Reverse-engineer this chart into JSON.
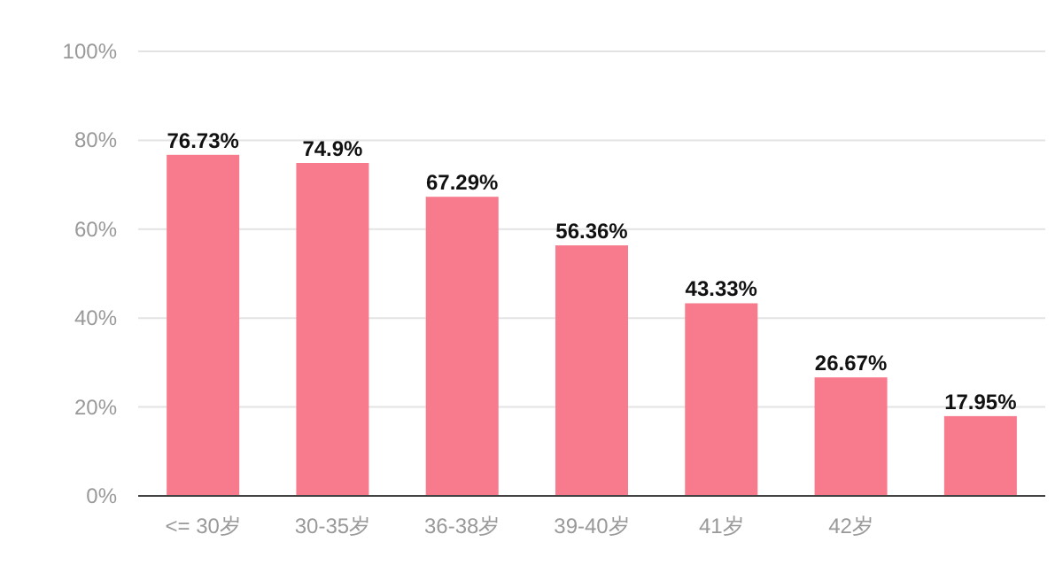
{
  "chart_data": {
    "type": "bar",
    "categories": [
      "<= 30岁",
      "30-35岁",
      "36-38岁",
      "39-40岁",
      "41岁",
      "42岁",
      null
    ],
    "values": [
      76.73,
      74.9,
      67.29,
      56.36,
      43.33,
      26.67,
      17.95
    ],
    "value_labels": [
      "76.73%",
      "74.9%",
      "67.29%",
      "56.36%",
      "43.33%",
      "26.67%",
      "17.95%"
    ],
    "color": "#f77b8c",
    "ylim": [
      0,
      100
    ],
    "yticks": [
      {
        "value": 0,
        "label": "0%"
      },
      {
        "value": 20,
        "label": "20%"
      },
      {
        "value": 40,
        "label": "40%"
      },
      {
        "value": 60,
        "label": "60%"
      },
      {
        "value": 80,
        "label": "80%"
      },
      {
        "value": 100,
        "label": "100%"
      }
    ],
    "grid": "y"
  }
}
